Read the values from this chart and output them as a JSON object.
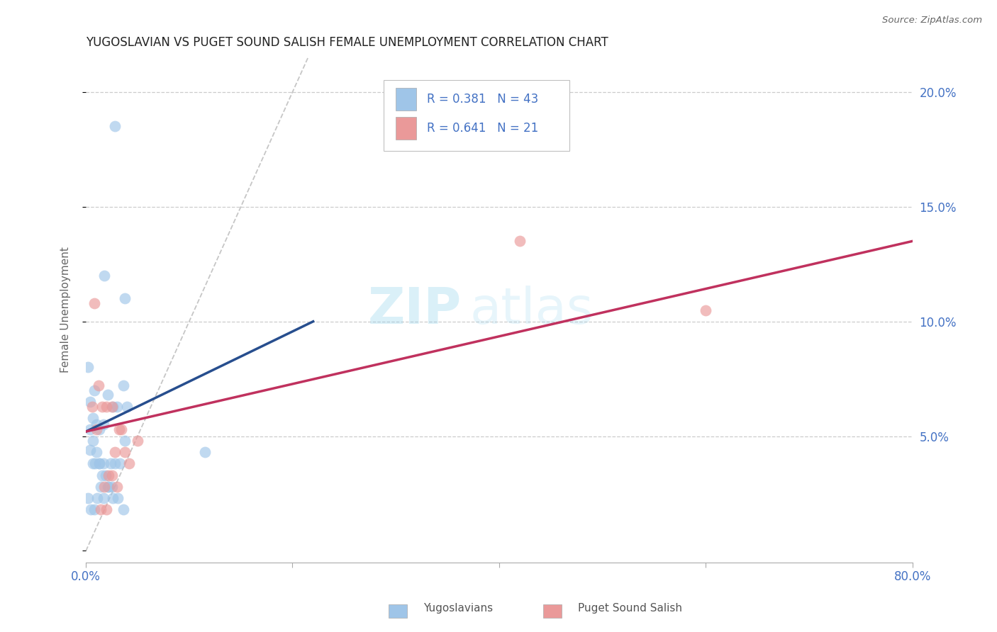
{
  "title": "YUGOSLAVIAN VS PUGET SOUND SALISH FEMALE UNEMPLOYMENT CORRELATION CHART",
  "source": "Source: ZipAtlas.com",
  "ylabel": "Female Unemployment",
  "xlim": [
    0.0,
    0.8
  ],
  "ylim": [
    -0.005,
    0.215
  ],
  "legend_r1": "R = 0.381",
  "legend_n1": "N = 43",
  "legend_r2": "R = 0.641",
  "legend_n2": "N = 21",
  "legend_label1": "Yugoslavians",
  "legend_label2": "Puget Sound Salish",
  "blue_color": "#9fc5e8",
  "pink_color": "#ea9999",
  "blue_line_color": "#274e8e",
  "pink_line_color": "#c0315e",
  "diag_line_color": "#b8b8b8",
  "watermark_zip": "ZIP",
  "watermark_atlas": "atlas",
  "blue_scatter_x": [
    0.018,
    0.038,
    0.028,
    0.002,
    0.008,
    0.004,
    0.007,
    0.01,
    0.013,
    0.017,
    0.021,
    0.026,
    0.03,
    0.036,
    0.04,
    0.004,
    0.007,
    0.009,
    0.013,
    0.016,
    0.019,
    0.024,
    0.028,
    0.033,
    0.038,
    0.002,
    0.005,
    0.008,
    0.011,
    0.014,
    0.017,
    0.021,
    0.025,
    0.115,
    0.004,
    0.007,
    0.01,
    0.013,
    0.017,
    0.022,
    0.026,
    0.031,
    0.036
  ],
  "blue_scatter_y": [
    0.12,
    0.11,
    0.185,
    0.08,
    0.07,
    0.065,
    0.058,
    0.055,
    0.053,
    0.055,
    0.068,
    0.063,
    0.063,
    0.072,
    0.063,
    0.044,
    0.038,
    0.038,
    0.038,
    0.033,
    0.033,
    0.038,
    0.038,
    0.038,
    0.048,
    0.023,
    0.018,
    0.018,
    0.023,
    0.028,
    0.023,
    0.028,
    0.028,
    0.043,
    0.053,
    0.048,
    0.043,
    0.038,
    0.038,
    0.028,
    0.023,
    0.023,
    0.018
  ],
  "pink_scatter_x": [
    0.008,
    0.016,
    0.025,
    0.012,
    0.02,
    0.006,
    0.01,
    0.032,
    0.028,
    0.034,
    0.42,
    0.6,
    0.038,
    0.025,
    0.042,
    0.022,
    0.05,
    0.018,
    0.03,
    0.014,
    0.02
  ],
  "pink_scatter_y": [
    0.108,
    0.063,
    0.063,
    0.072,
    0.063,
    0.063,
    0.053,
    0.053,
    0.043,
    0.053,
    0.135,
    0.105,
    0.043,
    0.033,
    0.038,
    0.033,
    0.048,
    0.028,
    0.028,
    0.018,
    0.018
  ],
  "blue_line_x": [
    0.0,
    0.22
  ],
  "blue_line_y": [
    0.052,
    0.1
  ],
  "pink_line_x": [
    0.0,
    0.8
  ],
  "pink_line_y": [
    0.052,
    0.135
  ],
  "diag_line_x": [
    0.0,
    0.215
  ],
  "diag_line_y": [
    0.0,
    0.215
  ],
  "background_color": "#ffffff",
  "grid_color": "#cccccc",
  "xtick_labels": [
    "0.0%",
    "",
    "",
    "",
    "80.0%"
  ],
  "xtick_positions": [
    0.0,
    0.2,
    0.4,
    0.6,
    0.8
  ],
  "ytick_positions": [
    0.0,
    0.05,
    0.1,
    0.15,
    0.2
  ],
  "ytick_labels": [
    "",
    "5.0%",
    "10.0%",
    "15.0%",
    "20.0%"
  ]
}
